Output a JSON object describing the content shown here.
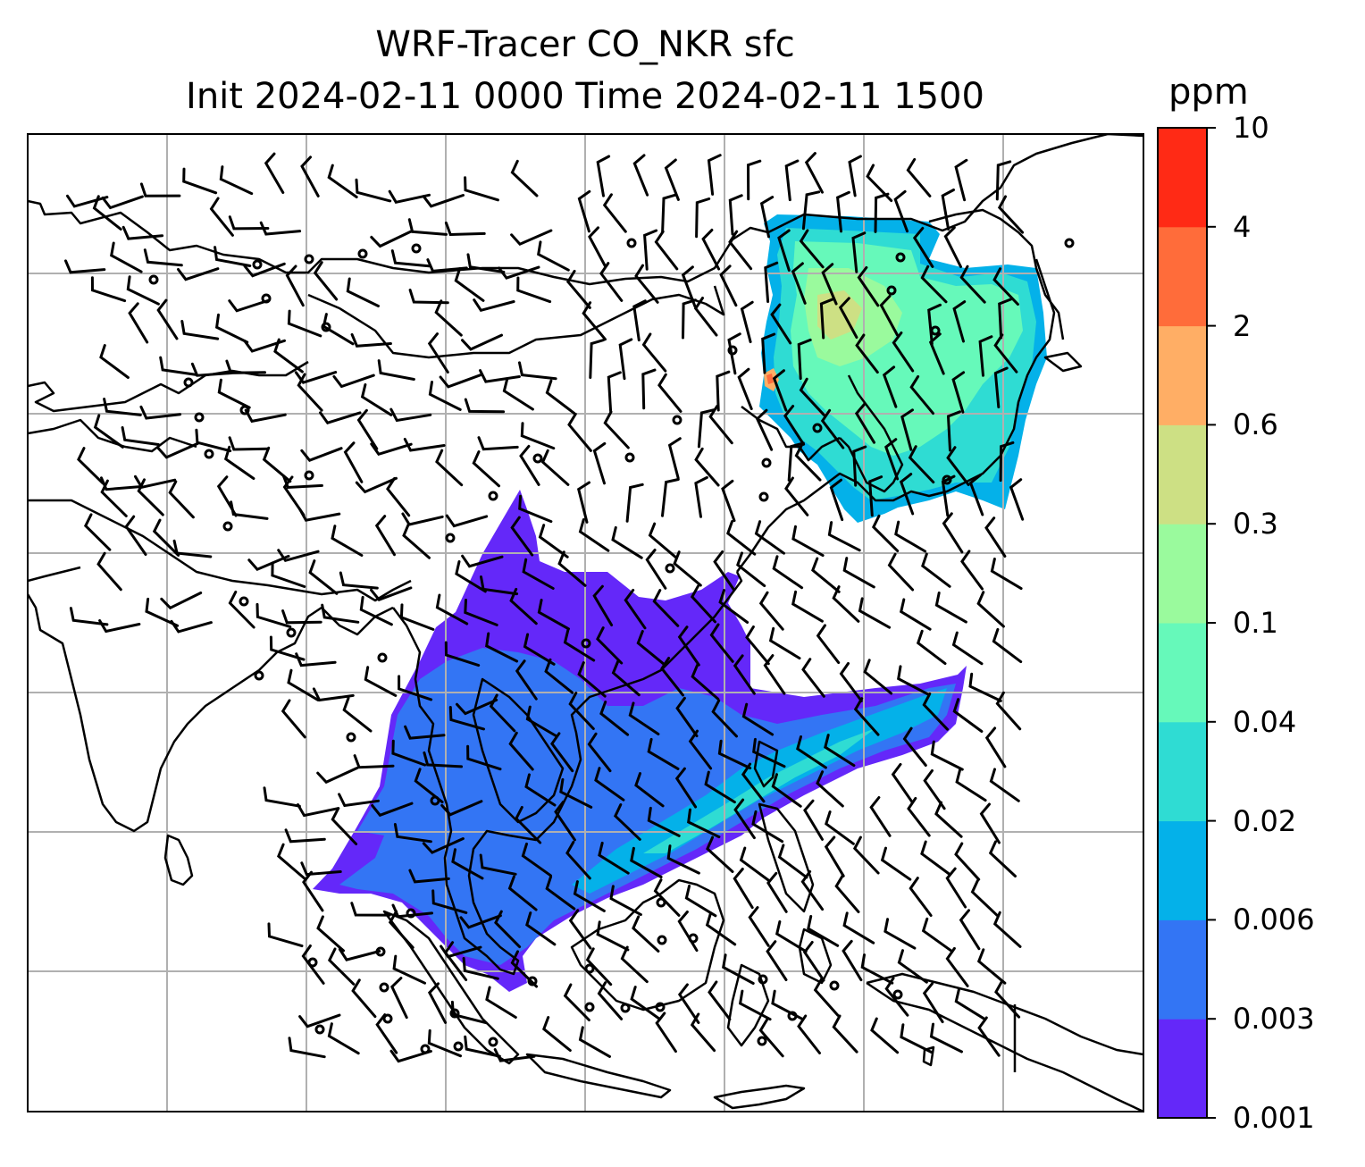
{
  "title_line1": "WRF-Tracer CO_NKR sfc",
  "title_line2": "Init 2024-02-11 0000 Time 2024-02-11 1500",
  "colorbar": {
    "unit": "ppm",
    "levels": [
      "0.001",
      "0.003",
      "0.006",
      "0.02",
      "0.04",
      "0.1",
      "0.3",
      "0.6",
      "2",
      "4",
      "10"
    ],
    "colors": [
      "#6428f9",
      "#3375f4",
      "#04b1e9",
      "#2fdcd3",
      "#66f9ba",
      "#9afa9d",
      "#cde084",
      "#ffae65",
      "#ff6c3a",
      "#ff2a15"
    ]
  },
  "map": {
    "land_color": "#ffffff",
    "coast_color": "#000000",
    "grid_color": "#b0b0b0",
    "plumes": [
      {
        "name": "northeast-china-plume",
        "levels": [
          "0.02",
          "0.04",
          "0.1",
          "0.6"
        ]
      },
      {
        "name": "southeast-asia-plume",
        "levels": [
          "0.001",
          "0.003",
          "0.006",
          "0.02",
          "0.04"
        ]
      }
    ],
    "wind_barbs": "calm circles and half/full barbs over East Asia"
  }
}
